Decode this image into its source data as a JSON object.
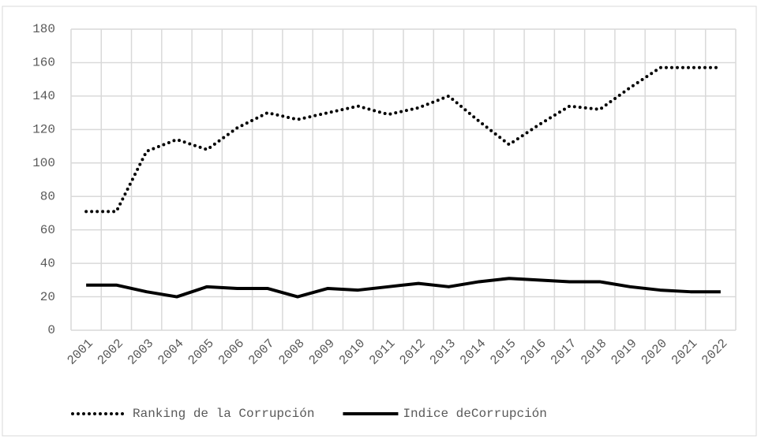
{
  "chart_data": {
    "type": "line",
    "categories": [
      "2001",
      "2002",
      "2003",
      "2004",
      "2005",
      "2006",
      "2007",
      "2008",
      "2009",
      "2010",
      "2011",
      "2012",
      "2013",
      "2014",
      "2015",
      "2016",
      "2017",
      "2018",
      "2019",
      "2020",
      "2021",
      "2022"
    ],
    "series": [
      {
        "name": "Ranking de la Corrupción",
        "color": "#000000",
        "dash": "dotted",
        "values": [
          71,
          71,
          107,
          114,
          108,
          121,
          130,
          126,
          130,
          134,
          129,
          133,
          140,
          125,
          111,
          123,
          134,
          132,
          145,
          157,
          157,
          157
        ]
      },
      {
        "name": "Indice deCorrupción",
        "color": "#000000",
        "dash": "solid",
        "values": [
          27,
          27,
          23,
          20,
          26,
          25,
          25,
          20,
          25,
          24,
          26,
          28,
          26,
          29,
          31,
          30,
          29,
          29,
          26,
          24,
          23,
          23
        ]
      }
    ],
    "ylim": [
      0,
      180
    ],
    "yticks": [
      0,
      20,
      40,
      60,
      80,
      100,
      120,
      140,
      160,
      180
    ],
    "grid": true,
    "legend": "bottom"
  }
}
